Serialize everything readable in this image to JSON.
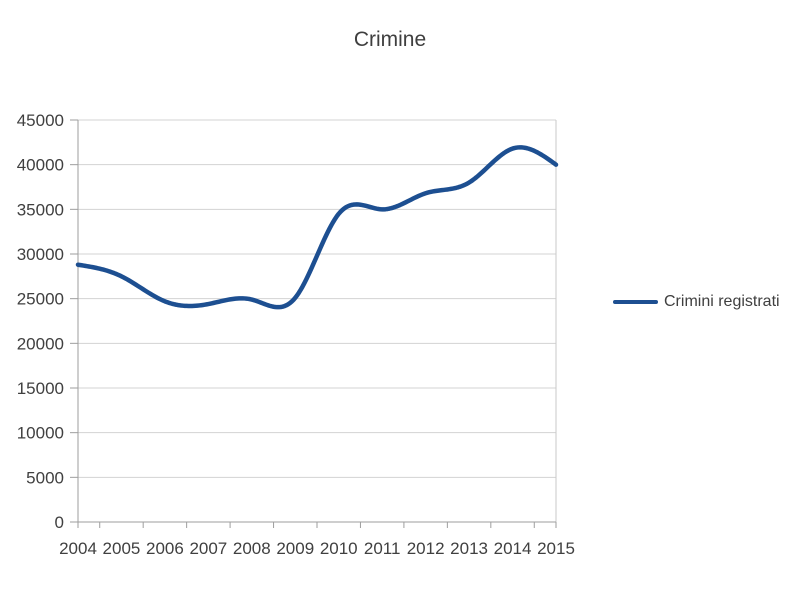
{
  "chart_data": {
    "type": "line",
    "title": "Crimine",
    "categories": [
      "2004",
      "2005",
      "2006",
      "2007",
      "2008",
      "2009",
      "2010",
      "2011",
      "2012",
      "2013",
      "2014",
      "2015"
    ],
    "series": [
      {
        "name": "Crimini registrati",
        "values": [
          28800,
          27500,
          24700,
          24400,
          24900,
          25100,
          34500,
          35000,
          36800,
          38000,
          41800,
          40000
        ]
      }
    ],
    "xlabel": "",
    "ylabel": "",
    "ylim": [
      0,
      45000
    ],
    "y_ticks": [
      0,
      5000,
      10000,
      15000,
      20000,
      25000,
      30000,
      35000,
      40000,
      45000
    ],
    "grid": true,
    "smooth": true,
    "legend_position": "right",
    "colors": {
      "line": "#1d4f91",
      "text": "#404040",
      "grid": "#d3d3d3",
      "axis": "#9e9e9e",
      "plot_border": "#c9c9c9",
      "background": "#ffffff"
    }
  }
}
